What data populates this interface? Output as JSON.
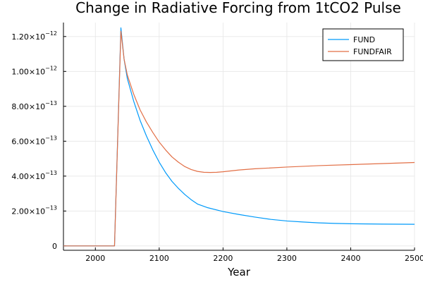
{
  "chart_data": {
    "type": "line",
    "title": "Change in Radiative Forcing from 1tCO2 Pulse",
    "xlabel": "Year",
    "ylabel": "",
    "xlim": [
      1950,
      2500
    ],
    "ylim": [
      -2.5e-14,
      1.28e-12
    ],
    "x_ticks": [
      {
        "value": 2000,
        "label": "2000"
      },
      {
        "value": 2100,
        "label": "2100"
      },
      {
        "value": 2200,
        "label": "2200"
      },
      {
        "value": 2300,
        "label": "2300"
      },
      {
        "value": 2400,
        "label": "2400"
      },
      {
        "value": 2500,
        "label": "2500"
      }
    ],
    "y_ticks": [
      {
        "value": 0,
        "mant": "0",
        "exp": ""
      },
      {
        "value": 2e-13,
        "mant": "2.00×10",
        "exp": "−13"
      },
      {
        "value": 4e-13,
        "mant": "4.00×10",
        "exp": "−13"
      },
      {
        "value": 6e-13,
        "mant": "6.00×10",
        "exp": "−13"
      },
      {
        "value": 8e-13,
        "mant": "8.00×10",
        "exp": "−13"
      },
      {
        "value": 1e-12,
        "mant": "1.00×10",
        "exp": "−12"
      },
      {
        "value": 1.2e-12,
        "mant": "1.20×10",
        "exp": "−12"
      }
    ],
    "grid": true,
    "legend_position": "top-right",
    "series": [
      {
        "name": "FUND",
        "color": "#009AFA",
        "x": [
          1950,
          2000,
          2029,
          2030,
          2040,
          2045,
          2050,
          2060,
          2070,
          2080,
          2090,
          2100,
          2110,
          2120,
          2130,
          2140,
          2150,
          2160,
          2175,
          2200,
          2225,
          2250,
          2275,
          2300,
          2325,
          2350,
          2375,
          2400,
          2450,
          2500
        ],
        "y": [
          0,
          0,
          0,
          0,
          1.25e-12,
          1.07e-12,
          9.6e-13,
          8.3e-13,
          7.2e-13,
          6.3e-13,
          5.5e-13,
          4.8e-13,
          4.2e-13,
          3.7e-13,
          3.3e-13,
          2.95e-13,
          2.65e-13,
          2.4e-13,
          2.2e-13,
          1.97e-13,
          1.8e-13,
          1.65e-13,
          1.52e-13,
          1.43e-13,
          1.37e-13,
          1.32e-13,
          1.29e-13,
          1.27e-13,
          1.25e-13,
          1.24e-13
        ]
      },
      {
        "name": "FUNDFAIR",
        "color": "#E26F46",
        "x": [
          1950,
          2000,
          2029,
          2030,
          2040,
          2045,
          2050,
          2060,
          2070,
          2080,
          2090,
          2100,
          2110,
          2120,
          2130,
          2140,
          2150,
          2160,
          2170,
          2180,
          2190,
          2200,
          2225,
          2250,
          2300,
          2350,
          2400,
          2450,
          2500
        ],
        "y": [
          0,
          0,
          0,
          0,
          1.23e-12,
          1.07e-12,
          9.8e-13,
          8.7e-13,
          7.8e-13,
          7.1e-13,
          6.5e-13,
          5.95e-13,
          5.5e-13,
          5.1e-13,
          4.8e-13,
          4.55e-13,
          4.38e-13,
          4.27e-13,
          4.22e-13,
          4.21e-13,
          4.22e-13,
          4.25e-13,
          4.35e-13,
          4.42e-13,
          4.52e-13,
          4.6e-13,
          4.66e-13,
          4.72e-13,
          4.78e-13
        ]
      }
    ]
  }
}
